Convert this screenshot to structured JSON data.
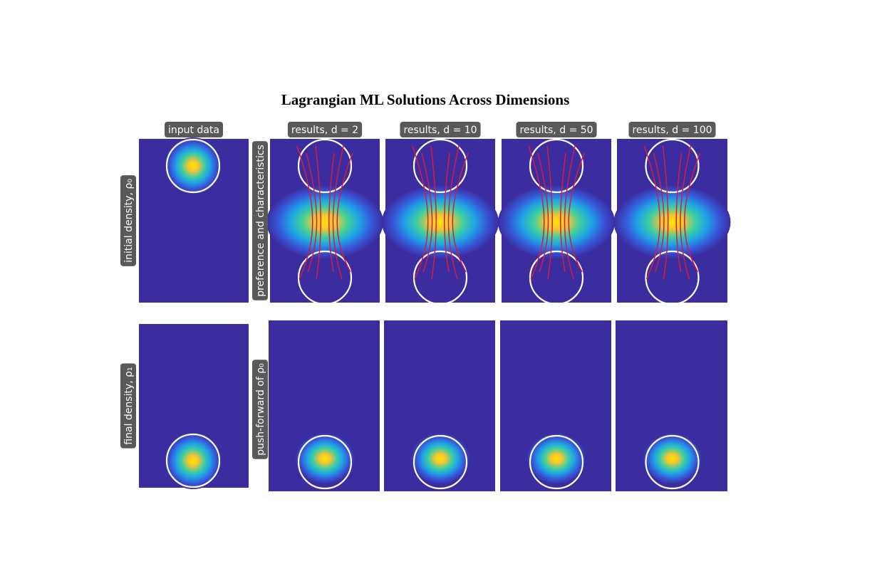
{
  "title": "Lagrangian ML Solutions Across Dimensions",
  "columns": [
    "input data",
    "results, d = 2",
    "results, d = 10",
    "results, d = 50",
    "results, d = 100"
  ],
  "row_labels": {
    "input": [
      "initial density, ρ₀",
      "final density, ρ₁"
    ],
    "results": [
      "preference and characteristics",
      "push-forward of ρ₀"
    ]
  }
}
